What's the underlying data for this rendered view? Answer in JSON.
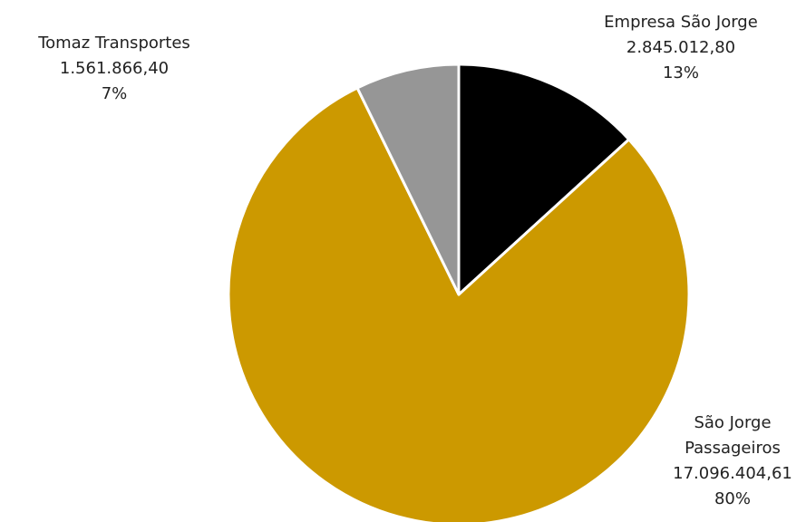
{
  "chart_data": {
    "type": "pie",
    "title": "",
    "slices": [
      {
        "label": "Empresa São Jorge",
        "label_lines": [
          "Empresa São Jorge"
        ],
        "value": 2845012.8,
        "value_text": "2.845.012,80",
        "percent_text": "13%",
        "color": "#000000"
      },
      {
        "label": "São Jorge Passageiros",
        "label_lines": [
          "São Jorge",
          "Passageiros"
        ],
        "value": 17096404.61,
        "value_text": "17.096.404,61",
        "percent_text": "80%",
        "color": "#CC9900"
      },
      {
        "label": "Tomaz Transportes",
        "label_lines": [
          "Tomaz Transportes"
        ],
        "value": 1561866.4,
        "value_text": "1.561.866,40",
        "percent_text": "7%",
        "color": "#969696"
      }
    ],
    "start_angle": "top",
    "direction": "clockwise",
    "legend": "none"
  }
}
